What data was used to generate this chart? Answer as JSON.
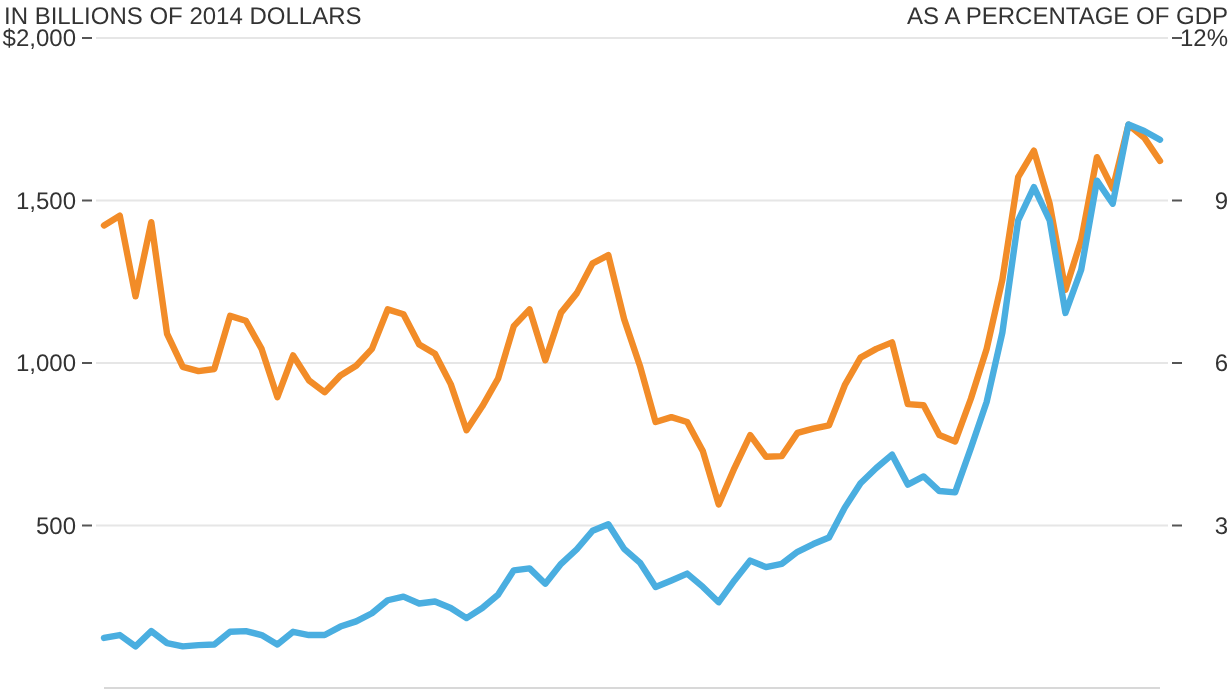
{
  "chart_data": {
    "type": "line",
    "ylabel": "IN BILLIONS OF 2014 DOLLARS",
    "y2label": "AS A PERCENTAGE OF GDP",
    "categories": [
      null,
      null,
      null,
      null,
      null,
      null,
      null,
      null,
      null,
      null,
      null,
      null,
      null,
      null,
      null,
      null,
      null,
      null,
      null,
      null,
      null,
      null,
      null,
      null,
      null,
      null,
      null,
      null,
      null,
      null,
      null,
      null,
      null,
      null,
      null,
      null,
      null,
      null,
      null,
      null,
      null,
      null,
      null,
      null,
      null,
      null,
      null,
      null,
      null,
      null,
      null,
      null,
      null,
      null,
      null,
      null,
      null,
      null,
      null,
      null,
      null,
      null,
      null,
      null,
      null,
      null,
      null,
      null
    ],
    "series": [
      {
        "color": "#f28c28",
        "axis": "y2",
        "values": [
          8.54,
          8.72,
          7.23,
          8.6,
          6.54,
          5.93,
          5.85,
          5.89,
          6.87,
          6.78,
          6.26,
          5.37,
          6.14,
          5.68,
          5.46,
          5.77,
          5.95,
          6.26,
          6.99,
          6.9,
          6.34,
          6.17,
          5.61,
          4.76,
          5.2,
          5.71,
          6.68,
          6.99,
          6.05,
          6.93,
          7.29,
          7.84,
          7.99,
          6.81,
          5.95,
          4.91,
          5.0,
          4.91,
          4.37,
          3.39,
          4.06,
          4.67,
          4.27,
          4.28,
          4.71,
          4.79,
          4.85,
          5.59,
          6.1,
          6.26,
          6.38,
          5.24,
          5.22,
          4.67,
          4.55,
          5.34,
          6.26,
          7.54,
          9.43,
          9.92,
          8.94,
          7.35,
          8.27,
          9.8,
          9.22,
          10.4,
          10.16,
          9.73
        ]
      },
      {
        "color": "#4aaee0",
        "axis": "y",
        "values": [
          154,
          163,
          128,
          175,
          138,
          128,
          132,
          134,
          173,
          175,
          163,
          134,
          173,
          163,
          163,
          189,
          205,
          230,
          270,
          281,
          260,
          266,
          246,
          215,
          246,
          287,
          362,
          368,
          321,
          382,
          427,
          484,
          504,
          428,
          386,
          311,
          331,
          352,
          311,
          264,
          331,
          392,
          372,
          382,
          419,
          443,
          463,
          555,
          630,
          677,
          718,
          626,
          651,
          606,
          602,
          738,
          880,
          1094,
          1439,
          1541,
          1439,
          1154,
          1287,
          1561,
          1490,
          1734,
          1714,
          1687
        ]
      }
    ],
    "ylim": [
      0,
      2000
    ],
    "yticks": [
      500,
      {
        "value": 1000,
        "label": "1,000"
      },
      {
        "value": 1500,
        "label": "1,500"
      },
      {
        "value": 2000,
        "label": "$2,000"
      }
    ],
    "y2lim": [
      0,
      12
    ],
    "y2ticks": [
      3,
      6,
      9,
      {
        "value": 12,
        "label": "12%"
      }
    ],
    "grid": "y",
    "marker": "none",
    "line_style": "solid"
  }
}
